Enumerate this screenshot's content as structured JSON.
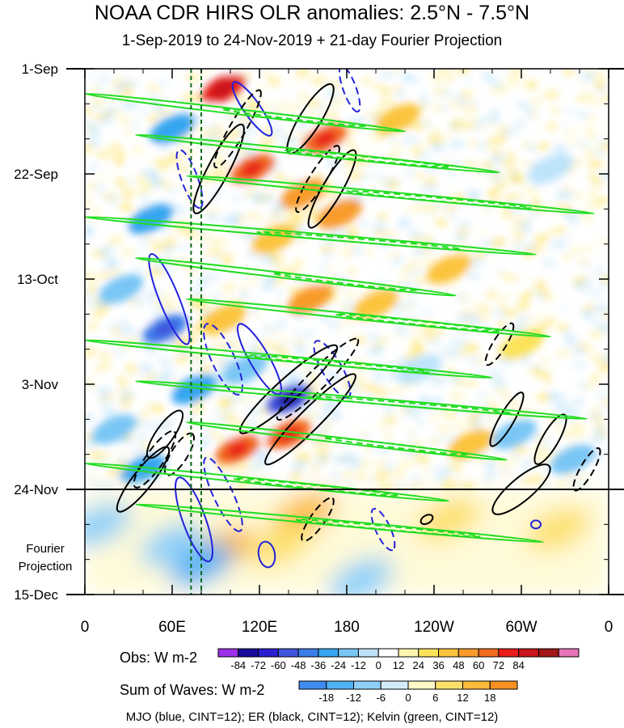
{
  "title": "NOAA CDR HIRS OLR anomalies: 2.5°N - 7.5°N",
  "subtitle": "1-Sep-2019 to 24-Nov-2019 + 21-day Fourier Projection",
  "projection_label_line1": "Fourier",
  "projection_label_line2": "Projection",
  "footer": "MJO (blue, CINT=12); ER (black, CINT=12); Kelvin (green, CINT=12)",
  "chart_data": {
    "type": "heatmap",
    "title": "NOAA CDR HIRS OLR anomalies: 2.5°N - 7.5°N",
    "subtitle": "1-Sep-2019 to 24-Nov-2019 + 21-day Fourier Projection",
    "x_ticks": [
      {
        "lon": 0,
        "label": "0"
      },
      {
        "lon": 60,
        "label": "60E"
      },
      {
        "lon": 120,
        "label": "120E"
      },
      {
        "lon": 180,
        "label": "180"
      },
      {
        "lon": 240,
        "label": "120W"
      },
      {
        "lon": 300,
        "label": "60W"
      },
      {
        "lon": 360,
        "label": "0"
      }
    ],
    "xlim": [
      0,
      360
    ],
    "y_ticks": [
      {
        "day": 0,
        "label": "1-Sep"
      },
      {
        "day": 21,
        "label": "22-Sep"
      },
      {
        "day": 42,
        "label": "13-Oct"
      },
      {
        "day": 63,
        "label": "3-Nov"
      },
      {
        "day": 84,
        "label": "24-Nov"
      },
      {
        "day": 105,
        "label": "15-Dec"
      }
    ],
    "ylim": [
      0,
      105
    ],
    "observation_end_day": 84,
    "reference_lons": [
      73,
      80
    ],
    "obs_colorbar": {
      "title": "Obs: W m-2",
      "labels": [
        "-84",
        "-72",
        "-60",
        "-48",
        "-36",
        "-24",
        "-12",
        "0",
        "12",
        "24",
        "36",
        "48",
        "60",
        "72",
        "84"
      ],
      "colors": [
        "#9b30e8",
        "#1a0a9a",
        "#2a1ed0",
        "#3f55dc",
        "#3a7ee8",
        "#35a6f0",
        "#79c6f5",
        "#bde3fa",
        "#ffffff",
        "#fff5b0",
        "#fde35a",
        "#fcc43c",
        "#f89b2c",
        "#f26a1e",
        "#e81e1a",
        "#c8141a",
        "#a01818",
        "#e874b8"
      ]
    },
    "waves_colorbar": {
      "title": "Sum of Waves: W m-2",
      "labels": [
        "-18",
        "-12",
        "-6",
        "0",
        "6",
        "12",
        "18"
      ],
      "colors": [
        "#3e8cf0",
        "#4fb0f4",
        "#8fd0f8",
        "#d3ecfc",
        "#fff8c8",
        "#fde06a",
        "#fbba3a",
        "#f7901e"
      ]
    },
    "series": [
      {
        "name": "MJO",
        "color": "#2222dd",
        "cint": 12
      },
      {
        "name": "ER",
        "color": "#000000",
        "cint": 12
      },
      {
        "name": "Kelvin",
        "color": "#22dd22",
        "cint": 12
      }
    ],
    "anomaly_features": [
      {
        "lon": 95,
        "day": 4,
        "value": 60
      },
      {
        "lon": 165,
        "day": 14,
        "value": 55
      },
      {
        "lon": 115,
        "day": 20,
        "value": 50
      },
      {
        "lon": 150,
        "day": 25,
        "value": 45
      },
      {
        "lon": 175,
        "day": 29,
        "value": 40
      },
      {
        "lon": 130,
        "day": 34,
        "value": 35
      },
      {
        "lon": 155,
        "day": 46,
        "value": 40
      },
      {
        "lon": 95,
        "day": 50,
        "value": 35
      },
      {
        "lon": 200,
        "day": 47,
        "value": 30
      },
      {
        "lon": 140,
        "day": 73,
        "value": 50
      },
      {
        "lon": 105,
        "day": 76,
        "value": 55
      },
      {
        "lon": 45,
        "day": 30,
        "value": -45
      },
      {
        "lon": 60,
        "day": 12,
        "value": -40
      },
      {
        "lon": 25,
        "day": 44,
        "value": -30
      },
      {
        "lon": 55,
        "day": 52,
        "value": -50
      },
      {
        "lon": 75,
        "day": 64,
        "value": -40
      },
      {
        "lon": 140,
        "day": 66,
        "value": -70
      },
      {
        "lon": 110,
        "day": 60,
        "value": -35
      },
      {
        "lon": 40,
        "day": 80,
        "value": -45
      },
      {
        "lon": 20,
        "day": 72,
        "value": -30
      },
      {
        "lon": 295,
        "day": 73,
        "value": -25
      },
      {
        "lon": 335,
        "day": 78,
        "value": -30
      },
      {
        "lon": 250,
        "day": 40,
        "value": 25
      },
      {
        "lon": 300,
        "day": 55,
        "value": 20
      },
      {
        "lon": 265,
        "day": 75,
        "value": 25
      },
      {
        "lon": 230,
        "day": 60,
        "value": -20
      },
      {
        "lon": 320,
        "day": 20,
        "value": -20
      },
      {
        "lon": 215,
        "day": 10,
        "value": 25
      },
      {
        "lon": 95,
        "day": 96,
        "value": 12
      },
      {
        "lon": 150,
        "day": 89,
        "value": 16
      },
      {
        "lon": 135,
        "day": 95,
        "value": 10
      },
      {
        "lon": 250,
        "day": 90,
        "value": 10
      },
      {
        "lon": 325,
        "day": 92,
        "value": 6
      },
      {
        "lon": 10,
        "day": 91,
        "value": -8
      },
      {
        "lon": 80,
        "day": 99,
        "value": -14
      },
      {
        "lon": 60,
        "day": 95,
        "value": -8
      },
      {
        "lon": 190,
        "day": 102,
        "value": -10
      }
    ]
  }
}
